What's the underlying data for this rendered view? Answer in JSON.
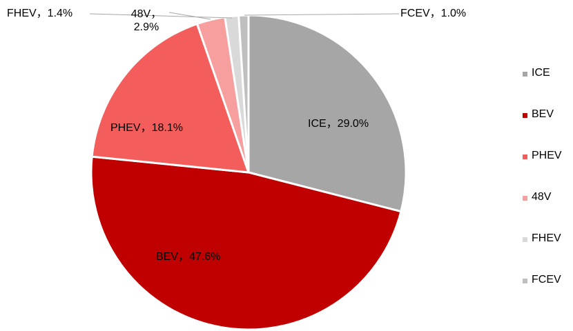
{
  "chart_data": {
    "type": "pie",
    "categories": [
      "ICE",
      "BEV",
      "PHEV",
      "48V",
      "FHEV",
      "FCEV"
    ],
    "values": [
      29.0,
      47.6,
      18.1,
      2.9,
      1.4,
      1.0
    ],
    "value_labels": [
      "ICE，29.0%",
      "BEV，47.6%",
      "PHEV，18.1%",
      "48V，2.9%",
      "FHEV，1.4%",
      "FCEV，1.0%"
    ],
    "colors": [
      "#a6a6a6",
      "#c00000",
      "#f35d5b",
      "#f79e9e",
      "#d9d9d9",
      "#bfbfbf"
    ],
    "legend": "right"
  }
}
